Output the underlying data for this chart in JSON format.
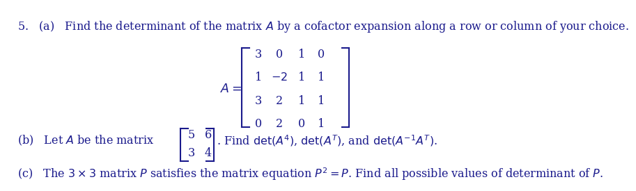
{
  "bg_color": "#ffffff",
  "text_color": "#1a1a8c",
  "fs": 11.5,
  "line_a": "5. (a) Find the determinant of the matrix $A$ by a cofactor expansion along a row or column of your choice.",
  "matrix_a_label": "$A=$",
  "matrix_a": [
    [
      3,
      0,
      1,
      0
    ],
    [
      1,
      -2,
      1,
      1
    ],
    [
      3,
      2,
      1,
      1
    ],
    [
      0,
      2,
      0,
      1
    ]
  ],
  "line_b_pre": "(b) Let $A$ be the matrix",
  "matrix_b": [
    [
      5,
      6
    ],
    [
      3,
      4
    ]
  ],
  "line_b_post": ". Find $\\det(A^4)$, $\\det(A^T)$, and $\\det(A^{-1}A^T)$.",
  "line_c": "(c) The $3\\times3$ matrix $P$ satisfies the matrix equation $P^2=P$. Find all possible values of determinant of $P$."
}
